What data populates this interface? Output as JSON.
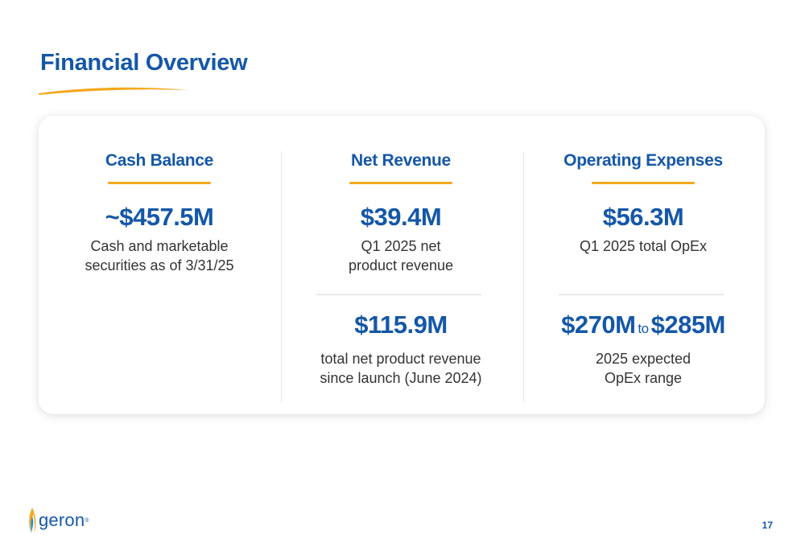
{
  "slide": {
    "title": "Financial Overview",
    "page_number": "17"
  },
  "columns": {
    "cash": {
      "heading": "Cash Balance",
      "value": "~$457.5M",
      "caption_line1": "Cash and marketable",
      "caption_line2": "securities as of 3/31/25"
    },
    "revenue": {
      "heading": "Net Revenue",
      "value": "$39.4M",
      "caption_line1": "Q1 2025 net",
      "caption_line2": "product revenue",
      "value2": "$115.9M",
      "caption2_line1": "total net product revenue",
      "caption2_line2": "since launch (June 2024)"
    },
    "opex": {
      "heading": "Operating Expenses",
      "value": "$56.3M",
      "caption_line1": "Q1 2025 total OpEx",
      "range_low": "$270M",
      "range_sep": "to",
      "range_high": "$285M",
      "caption2_line1": "2025 expected",
      "caption2_line2": "OpEx range"
    }
  },
  "logo": {
    "name": "geron",
    "icon": "flame-icon",
    "mark": "®"
  },
  "colors": {
    "brand_blue": "#1457a8",
    "accent_orange": "#f5a71c",
    "body_text": "#333333"
  }
}
